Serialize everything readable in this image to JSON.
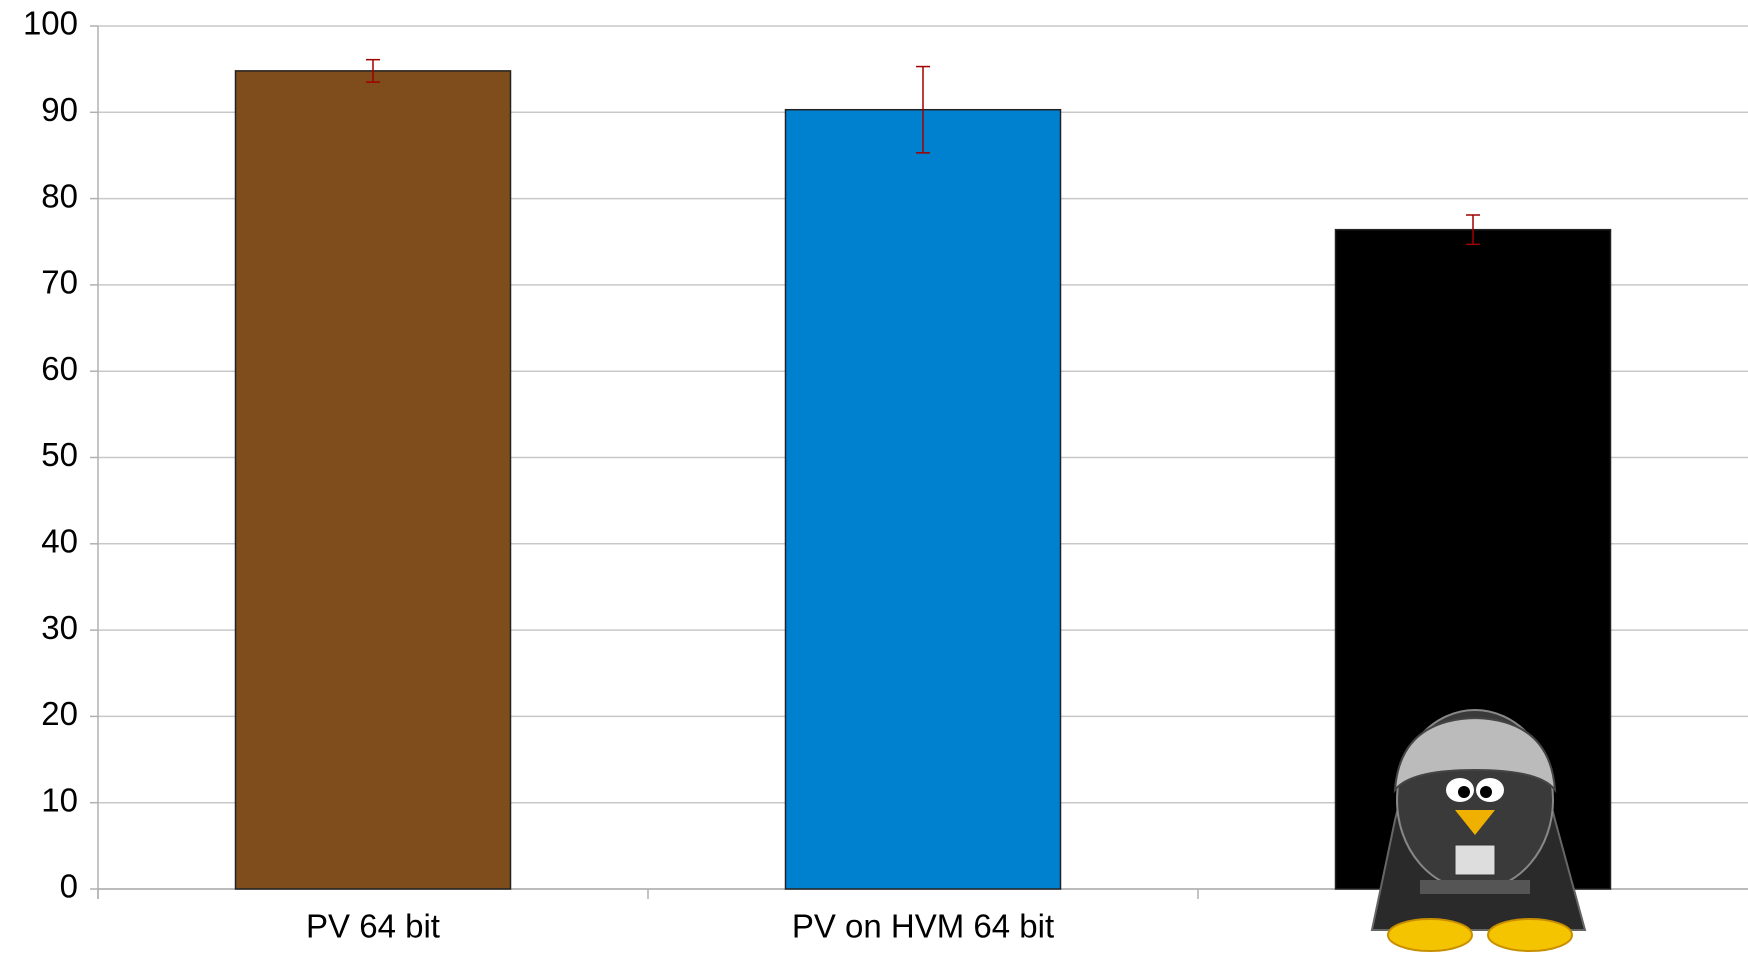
{
  "chart_data": {
    "type": "bar",
    "categories": [
      "PV 64 bit",
      "PV on HVM 64 bit",
      null
    ],
    "values": [
      94.8,
      90.3,
      76.4
    ],
    "errors": [
      1.3,
      5,
      1.7
    ],
    "colors": [
      "#7f4c1b",
      "#0081d0",
      "#000000"
    ],
    "error_color": "#a00000",
    "ylim": [
      0,
      100
    ],
    "yticks": [
      0,
      10,
      20,
      30,
      40,
      50,
      60,
      70,
      80,
      90,
      100
    ],
    "grid": true
  }
}
